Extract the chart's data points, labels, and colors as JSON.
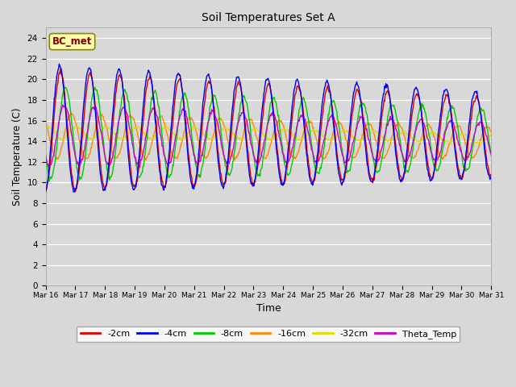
{
  "title": "Soil Temperatures Set A",
  "xlabel": "Time",
  "ylabel": "Soil Temperature (C)",
  "ylim": [
    0,
    25
  ],
  "yticks": [
    0,
    2,
    4,
    6,
    8,
    10,
    12,
    14,
    16,
    18,
    20,
    22,
    24
  ],
  "background_color": "#d8d8d8",
  "plot_background": "#d8d8d8",
  "legend_labels": [
    "-2cm",
    "-4cm",
    "-8cm",
    "-16cm",
    "-32cm",
    "Theta_Temp"
  ],
  "legend_colors": [
    "#dd0000",
    "#0000ee",
    "#00cc00",
    "#ff8800",
    "#dddd00",
    "#cc00cc"
  ],
  "annotation_text": "BC_met",
  "annotation_bg": "#ffffaa",
  "annotation_border": "#888800",
  "annotation_text_color": "#880000",
  "start_day": 16,
  "end_day": 31,
  "points_per_day": 48,
  "line_width": 1.0
}
